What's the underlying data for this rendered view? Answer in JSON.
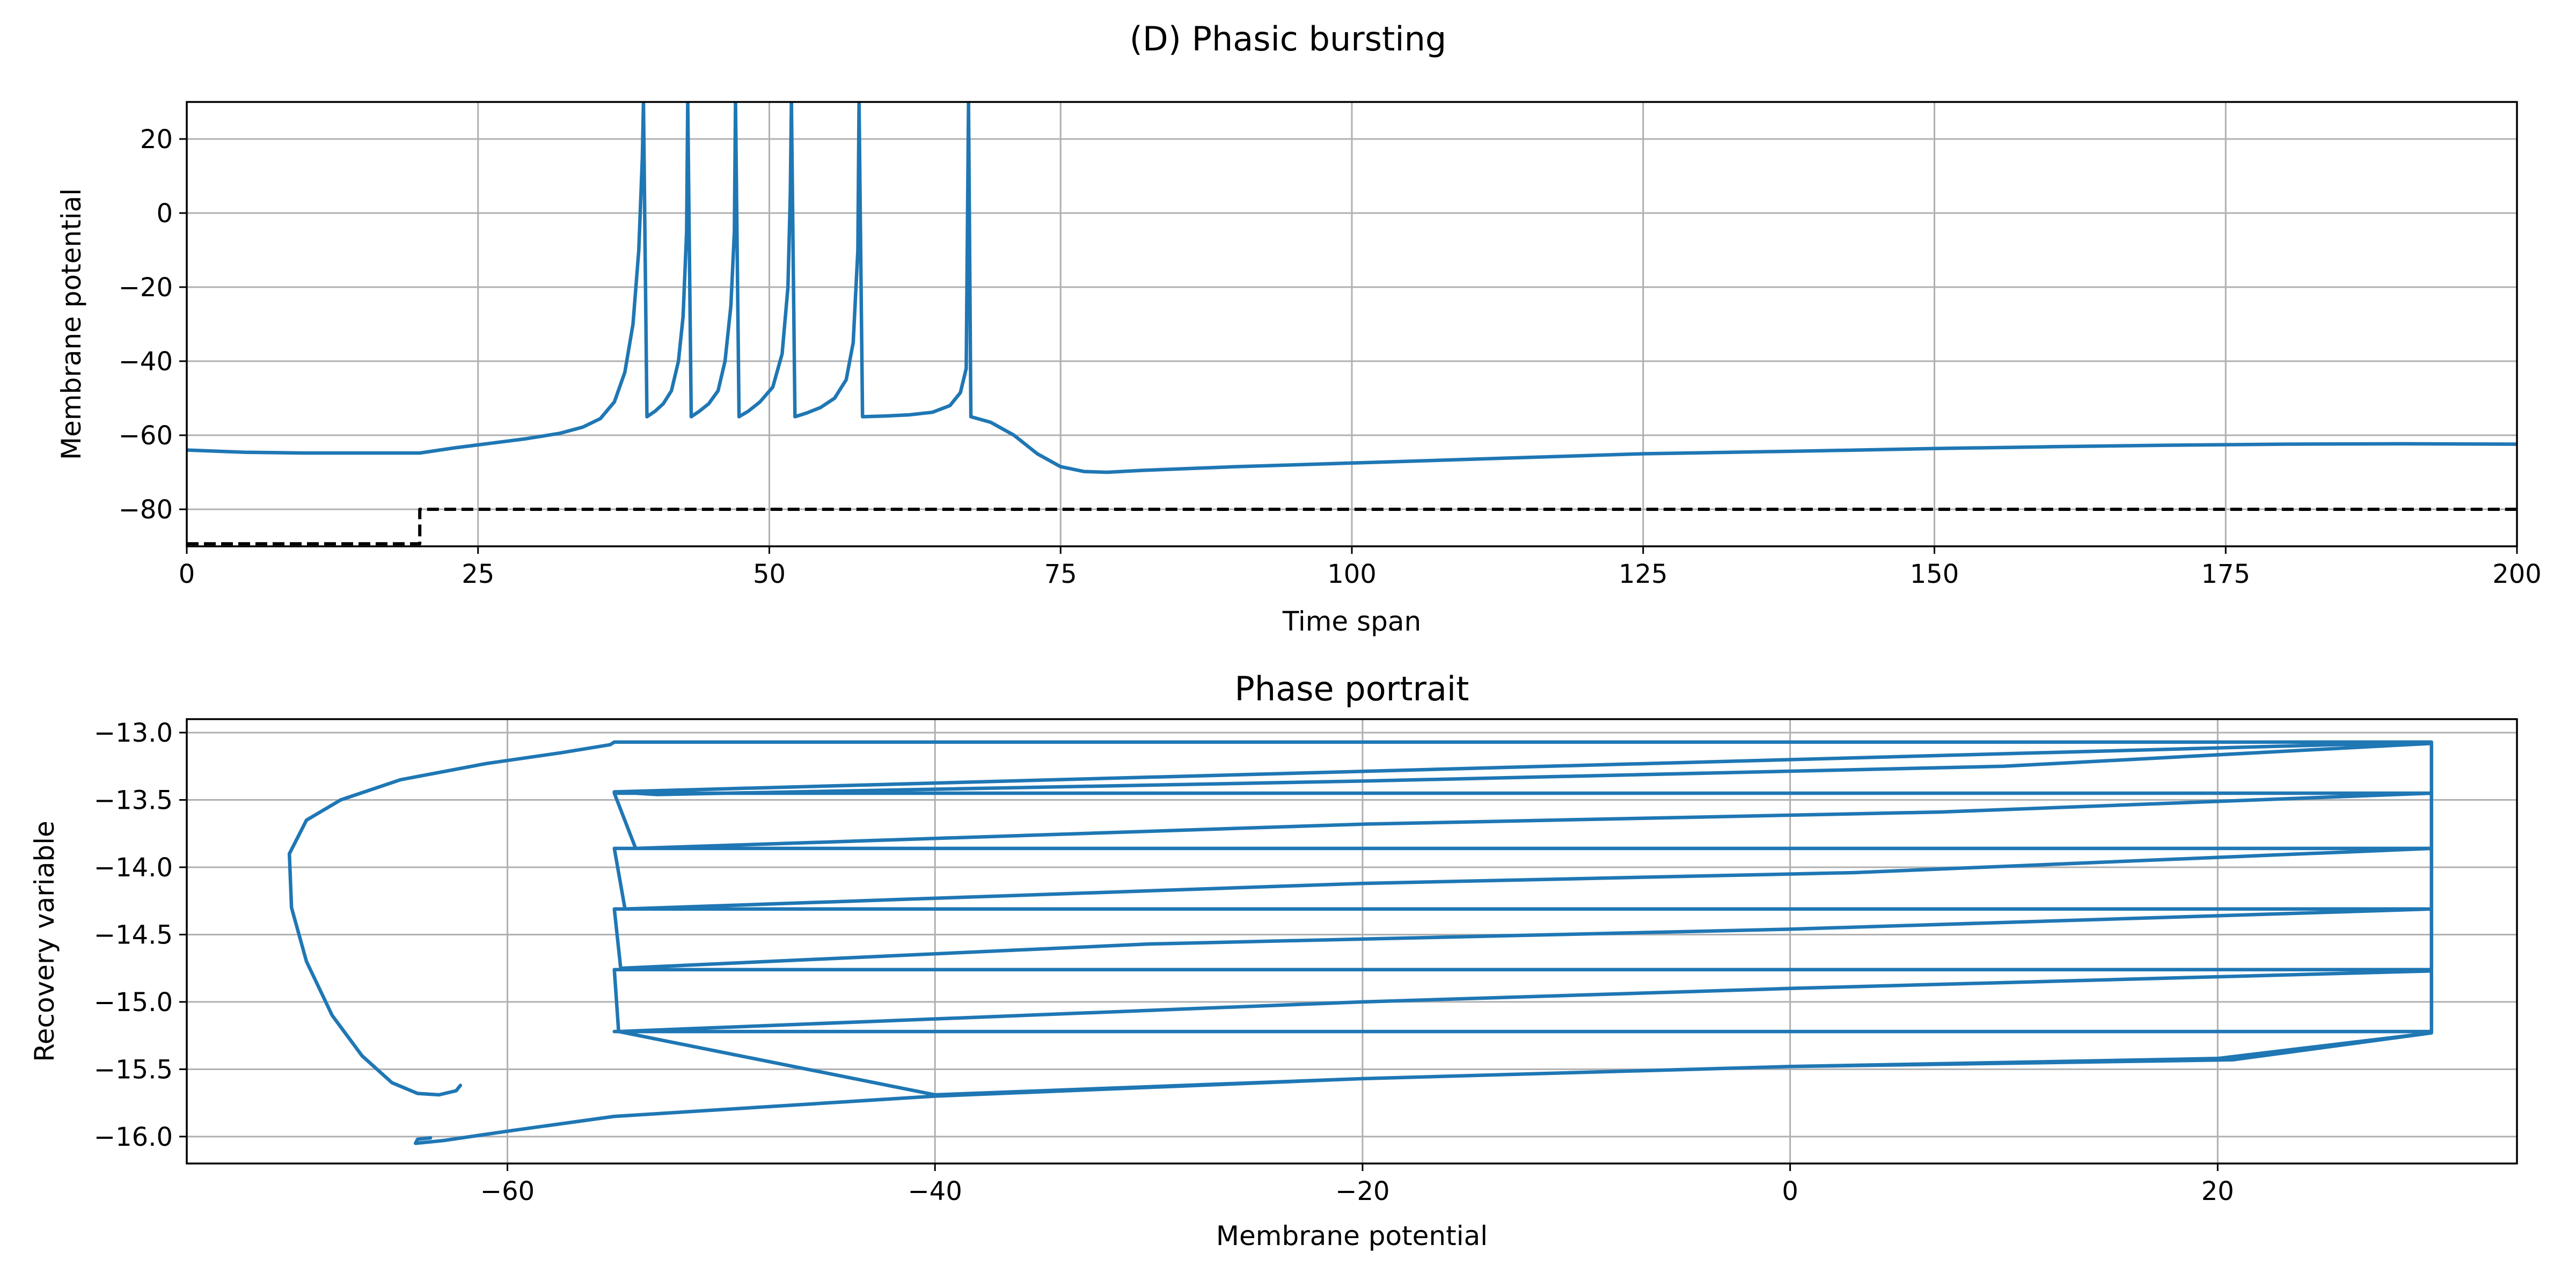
{
  "figure": {
    "suptitle": "(D) Phasic bursting"
  },
  "chart_data": [
    {
      "type": "line",
      "title": "",
      "xlabel": "Time span",
      "ylabel": "Membrane potential",
      "xlim": [
        0,
        200
      ],
      "ylim": [
        -90,
        30
      ],
      "xticks": [
        0,
        25,
        50,
        75,
        100,
        125,
        150,
        175,
        200
      ],
      "xtick_labels": [
        "0",
        "25",
        "50",
        "75",
        "100",
        "125",
        "150",
        "175",
        "200"
      ],
      "yticks": [
        20,
        0,
        -20,
        -40,
        -60,
        -80
      ],
      "ytick_labels": [
        "20",
        "0",
        "−20",
        "−40",
        "−60",
        "−80"
      ],
      "grid": true,
      "legend": "none",
      "series": [
        {
          "style": "solid",
          "color": "#1f77b4",
          "x": [
            0,
            5,
            10,
            15,
            20,
            23,
            26,
            29,
            32,
            34,
            35.5,
            36.7,
            37.6,
            38.3,
            38.8,
            39.1,
            39.2,
            39.5,
            40.2,
            40.9,
            41.6,
            42.2,
            42.6,
            42.9,
            43.0,
            43.3,
            44.0,
            44.8,
            45.6,
            46.2,
            46.7,
            47.0,
            47.1,
            47.4,
            48.2,
            49.2,
            50.3,
            51.1,
            51.6,
            51.8,
            51.9,
            52.2,
            53.2,
            54.4,
            55.6,
            56.6,
            57.2,
            57.6,
            57.7,
            58.0,
            60,
            62,
            64,
            65.5,
            66.4,
            66.9,
            67.1,
            67.3,
            69,
            71,
            73,
            75,
            77,
            79,
            82,
            90,
            100,
            110,
            125,
            140,
            150,
            160,
            170,
            180,
            190,
            200
          ],
          "y": [
            -64,
            -64.6,
            -64.8,
            -64.8,
            -64.8,
            -63.4,
            -62.2,
            -61,
            -59.5,
            -57.8,
            -55.5,
            -51,
            -43,
            -30,
            -10,
            15,
            30,
            -55,
            -53.5,
            -51.5,
            -48,
            -40,
            -28,
            -5,
            30,
            -55,
            -53.5,
            -51.5,
            -48,
            -40,
            -25,
            -5,
            30,
            -55,
            -53.5,
            -51,
            -47,
            -38,
            -20,
            5,
            30,
            -55,
            -54,
            -52.5,
            -50,
            -45,
            -35,
            -10,
            30,
            -55,
            -54.8,
            -54.5,
            -53.8,
            -52,
            -48.5,
            -42,
            30,
            -55,
            -56.5,
            -60,
            -65,
            -68.5,
            -69.8,
            -70,
            -69.5,
            -68.5,
            -67.5,
            -66.5,
            -65,
            -64.2,
            -63.6,
            -63.1,
            -62.7,
            -62.4,
            -62.3,
            -62.4
          ]
        },
        {
          "style": "dashed",
          "color": "#000000",
          "x": [
            0,
            20,
            20,
            200
          ],
          "y": [
            -89.3,
            -89.3,
            -80,
            -80
          ]
        }
      ]
    },
    {
      "type": "line",
      "title": "Phase portrait",
      "xlabel": "Membrane potential",
      "ylabel": "Recovery variable",
      "xlim": [
        -75,
        34
      ],
      "ylim": [
        -16.2,
        -12.9
      ],
      "xticks": [
        -60,
        -40,
        -20,
        0,
        20
      ],
      "xtick_labels": [
        "−60",
        "−40",
        "−20",
        "0",
        "20"
      ],
      "yticks": [
        -13.0,
        -13.5,
        -14.0,
        -14.5,
        -15.0,
        -15.5,
        -16.0
      ],
      "ytick_labels": [
        "−13.0",
        "−13.5",
        "−14.0",
        "−14.5",
        "−15.0",
        "−15.5",
        "−16.0"
      ],
      "grid": true,
      "legend": "none",
      "series": [
        {
          "style": "solid",
          "color": "#1f77b4",
          "x": [
            -62.2,
            -62.4,
            -63.2,
            -64.2,
            -65.4,
            -66.8,
            -68.2,
            -69.4,
            -70.1,
            -70.2,
            -69.4,
            -67.8,
            -65,
            -61,
            -57.5,
            -55.2,
            -55,
            30,
            30,
            -55,
            -53,
            -20,
            10,
            30,
            30,
            -55,
            -54,
            -20,
            7,
            30,
            30,
            -55,
            -54.5,
            -20,
            3,
            30,
            30,
            -55,
            -54.7,
            -30,
            0,
            30,
            30,
            -55,
            -54.8,
            -20,
            0,
            30,
            30,
            -55,
            -54.8,
            -40,
            -20,
            0,
            20.7,
            30,
            30,
            20,
            0,
            -20,
            -40,
            -55,
            -60,
            -63,
            -64.3,
            -64.2,
            -63.6
          ],
          "y": [
            -15.62,
            -15.66,
            -15.69,
            -15.68,
            -15.6,
            -15.4,
            -15.1,
            -14.7,
            -14.3,
            -13.9,
            -13.65,
            -13.5,
            -13.35,
            -13.23,
            -13.15,
            -13.09,
            -13.07,
            -13.07,
            -13.07,
            -13.44,
            -13.46,
            -13.36,
            -13.25,
            -13.08,
            -13.45,
            -13.45,
            -13.86,
            -13.68,
            -13.59,
            -13.45,
            -13.86,
            -13.86,
            -14.31,
            -14.12,
            -14.04,
            -13.86,
            -14.31,
            -14.31,
            -14.75,
            -14.57,
            -14.46,
            -14.31,
            -14.76,
            -14.76,
            -15.22,
            -15.0,
            -14.9,
            -14.77,
            -15.22,
            -15.22,
            -15.22,
            -15.69,
            -15.57,
            -15.48,
            -15.43,
            -15.23,
            -15.23,
            -15.42,
            -15.48,
            -15.57,
            -15.7,
            -15.85,
            -15.96,
            -16.03,
            -16.05,
            -16.02,
            -16.01
          ]
        }
      ]
    }
  ]
}
